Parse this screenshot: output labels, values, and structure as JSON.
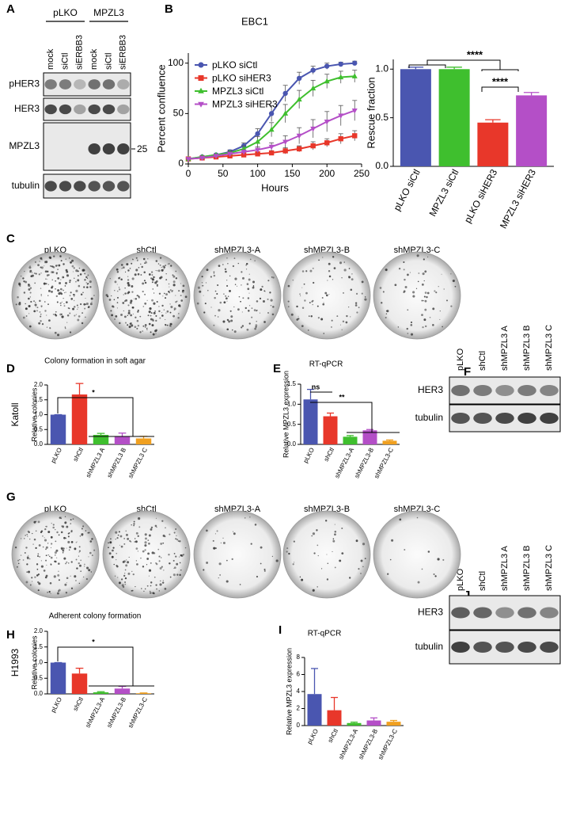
{
  "panel_labels": [
    "A",
    "B",
    "C",
    "D",
    "E",
    "F",
    "G",
    "H",
    "I",
    "J"
  ],
  "blots": [
    {
      "groups": [
        "pLKO",
        "MPZL3"
      ],
      "lanes": [
        "mock",
        "siCtl",
        "siERBB3",
        "mock",
        "siCtl",
        "siERBB3"
      ],
      "rows": [
        "pHER3",
        "HER3",
        "MPZL3",
        "tubulin"
      ],
      "marker": "25"
    },
    {
      "lanes": [
        "pLKO",
        "shCtl",
        "shMPZL3 A",
        "shMPZL3 B",
        "shMPZL3 C"
      ],
      "rows": [
        "HER3",
        "tubulin"
      ]
    },
    {
      "lanes": [
        "pLKO",
        "shCtl",
        "shMPZL3 A",
        "shMPZL3 B",
        "shMPZL3 C"
      ],
      "rows": [
        "HER3",
        "tubulin"
      ]
    }
  ],
  "colony_images": [
    {
      "labels": [
        "pLKO",
        "shCtl",
        "shMPZL3-A",
        "shMPZL3-B",
        "shMPZL3-C"
      ]
    },
    {
      "labels": [
        "pLKO",
        "shCtl",
        "shMPZL3-A",
        "shMPZL3-B",
        "shMPZL3-C"
      ]
    }
  ],
  "chart_data": [
    {
      "type": "line",
      "title": "EBC1",
      "x_label": "Hours",
      "y_label": "Percent confluence",
      "x": [
        0,
        20,
        40,
        60,
        80,
        100,
        120,
        140,
        160,
        180,
        200,
        220,
        240
      ],
      "series": [
        {
          "name": "pLKO siCtl",
          "color": "#4a56b0",
          "marker": "circle",
          "values": [
            5,
            7,
            9,
            12,
            18,
            30,
            50,
            70,
            85,
            93,
            97,
            99,
            100
          ],
          "errors": [
            1,
            1,
            1,
            2,
            3,
            5,
            8,
            8,
            6,
            4,
            3,
            2,
            2
          ]
        },
        {
          "name": "pLKO siHER3",
          "color": "#e8372a",
          "marker": "square",
          "values": [
            5,
            6,
            7,
            8,
            9,
            10,
            11,
            13,
            15,
            18,
            21,
            25,
            28
          ],
          "errors": [
            1,
            1,
            1,
            1,
            1,
            2,
            2,
            3,
            3,
            4,
            4,
            5,
            5
          ]
        },
        {
          "name": "MPZL3 siCtl",
          "color": "#3fbf2e",
          "marker": "triangle-up",
          "values": [
            5,
            7,
            9,
            11,
            15,
            22,
            34,
            50,
            64,
            75,
            82,
            86,
            87
          ],
          "errors": [
            1,
            1,
            1,
            2,
            3,
            5,
            7,
            9,
            9,
            8,
            7,
            6,
            6
          ]
        },
        {
          "name": "MPZL3 siHER3",
          "color": "#b44fc7",
          "marker": "triangle-down",
          "values": [
            5,
            6,
            8,
            10,
            12,
            14,
            17,
            22,
            28,
            35,
            42,
            48,
            53
          ],
          "errors": [
            1,
            1,
            1,
            2,
            2,
            3,
            4,
            6,
            8,
            9,
            10,
            10,
            10
          ]
        }
      ],
      "xlim": [
        0,
        250
      ],
      "xticks": [
        0,
        50,
        100,
        150,
        200,
        250
      ],
      "ylim": [
        0,
        110
      ],
      "yticks": [
        0,
        50,
        100
      ],
      "legend": "upper left"
    },
    {
      "type": "bar",
      "y_label": "Rescue fraction",
      "categories": [
        "pLKO siCtl",
        "MPZL3 siCtl",
        "pLKO siHER3",
        "MPZL3 siHER3"
      ],
      "values": [
        1.0,
        1.0,
        0.45,
        0.73
      ],
      "errors": [
        0.02,
        0.02,
        0.03,
        0.03
      ],
      "colors": [
        "#4a56b0",
        "#3fbf2e",
        "#e8372a",
        "#b44fc7"
      ],
      "ylim": [
        0,
        1.1
      ],
      "yticks": [
        {
          "value": 0,
          "label": "0.0"
        },
        {
          "value": 0.5,
          "label": "0.5"
        },
        {
          "value": 1,
          "label": "1.0"
        }
      ],
      "annotations": [
        "****",
        "****"
      ]
    },
    {
      "type": "bar",
      "title": "Colony formation in soft agar",
      "y_label": "Relative colonies",
      "side_label": "Katoll",
      "categories": [
        "pLKO",
        "shCtl",
        "shMPZL3 A",
        "shMPZL3 B",
        "shMPZL3 C"
      ],
      "values": [
        1.0,
        1.68,
        0.32,
        0.28,
        0.2
      ],
      "errors": [
        0,
        0.37,
        0.05,
        0.1,
        0.07
      ],
      "colors": [
        "#4a56b0",
        "#e8372a",
        "#3fbf2e",
        "#b44fc7",
        "#f0a020"
      ],
      "ylim": [
        0,
        2
      ],
      "yticks": [
        {
          "value": 0,
          "label": "0.0"
        },
        {
          "value": 0.5,
          "label": "0.5"
        },
        {
          "value": 1,
          "label": "1.0"
        },
        {
          "value": 1.5,
          "label": "1.5"
        },
        {
          "value": 2,
          "label": "2.0"
        }
      ],
      "annotations": [
        "*"
      ]
    },
    {
      "type": "bar",
      "title": "RT-qPCR",
      "y_label": "Relative MPZL3 expression",
      "categories": [
        "pLKO",
        "shCtl",
        "shMPZL3-A",
        "shMPZL3-B",
        "shMPZL3-C"
      ],
      "values": [
        1.12,
        0.7,
        0.19,
        0.35,
        0.09
      ],
      "errors": [
        0.25,
        0.08,
        0.03,
        0.02,
        0.02
      ],
      "colors": [
        "#4a56b0",
        "#e8372a",
        "#3fbf2e",
        "#b44fc7",
        "#f0a020"
      ],
      "ylim": [
        0,
        1.5
      ],
      "yticks": [
        {
          "value": 0,
          "label": "0.0"
        },
        {
          "value": 0.5,
          "label": "0.5"
        },
        {
          "value": 1,
          "label": "1.0"
        },
        {
          "value": 1.5,
          "label": "1.5"
        }
      ],
      "annotations": [
        "ns",
        "**"
      ]
    },
    {
      "type": "bar",
      "title": "Adherent colony formation",
      "y_label": "Relative colonies",
      "side_label": "H1993",
      "categories": [
        "pLKO",
        "shCtl",
        "shMPZL3-A",
        "shMPZL3-B",
        "shMPZL3-C"
      ],
      "values": [
        1.0,
        0.65,
        0.05,
        0.17,
        0.02
      ],
      "errors": [
        0,
        0.17,
        0.02,
        0.07,
        0.01
      ],
      "colors": [
        "#4a56b0",
        "#e8372a",
        "#3fbf2e",
        "#b44fc7",
        "#f0a020"
      ],
      "ylim": [
        0,
        2
      ],
      "yticks": [
        {
          "value": 0,
          "label": "0.0"
        },
        {
          "value": 0.5,
          "label": "0.5"
        },
        {
          "value": 1,
          "label": "1.0"
        },
        {
          "value": 1.5,
          "label": "1.5"
        },
        {
          "value": 2,
          "label": "2.0"
        }
      ],
      "annotations": [
        "*"
      ]
    },
    {
      "type": "bar",
      "title": "RT-qPCR",
      "y_label": "Relative MPZL3 expression",
      "categories": [
        "pLKO",
        "shCtl",
        "shMPZL3-A",
        "shMPZL3-B",
        "shMPZL3-C"
      ],
      "values": [
        3.7,
        1.8,
        0.3,
        0.6,
        0.45
      ],
      "errors": [
        3.0,
        1.5,
        0.1,
        0.3,
        0.15
      ],
      "colors": [
        "#4a56b0",
        "#e8372a",
        "#3fbf2e",
        "#b44fc7",
        "#f0a020"
      ],
      "ylim": [
        0,
        8
      ],
      "yticks": [
        0,
        2,
        4,
        6,
        8
      ]
    }
  ]
}
